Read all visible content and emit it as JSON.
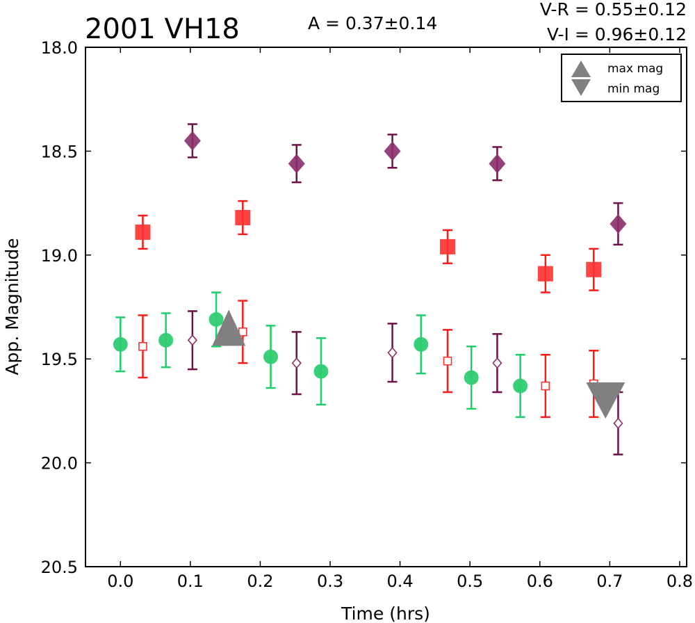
{
  "chart_data": {
    "type": "scatter",
    "title": "2001 VH18",
    "annotations": {
      "amplitude": "A  = 0.37±0.14",
      "v_r": "V-R = 0.55±0.12",
      "v_i": "V-I  = 0.96±0.12"
    },
    "xlabel": "Time (hrs)",
    "ylabel": "App. Magnitude",
    "xlim": [
      -0.05,
      0.81
    ],
    "ylim": [
      20.5,
      18.0
    ],
    "y_inverted": true,
    "xticks": [
      "0.0",
      "0.1",
      "0.2",
      "0.3",
      "0.4",
      "0.5",
      "0.6",
      "0.7",
      "0.8"
    ],
    "yticks": [
      "18.0",
      "18.5",
      "19.0",
      "19.5",
      "20.0",
      "20.5"
    ],
    "grid": false,
    "legend_position": "top-right",
    "legend": [
      {
        "label": "max mag",
        "marker": "triangle-up",
        "color": "#808080"
      },
      {
        "label": "min mag",
        "marker": "triangle-down",
        "color": "#808080"
      }
    ],
    "series": [
      {
        "marker": "circle",
        "color": "#2ecc71",
        "error_color": "#1ccf6a",
        "filled": true,
        "points": [
          {
            "x": 0.0,
            "y": 19.43,
            "err": 0.13
          },
          {
            "x": 0.065,
            "y": 19.41,
            "err": 0.13
          },
          {
            "x": 0.137,
            "y": 19.31,
            "err": 0.13
          },
          {
            "x": 0.215,
            "y": 19.49,
            "err": 0.15
          },
          {
            "x": 0.287,
            "y": 19.56,
            "err": 0.16
          },
          {
            "x": 0.43,
            "y": 19.43,
            "err": 0.14
          },
          {
            "x": 0.502,
            "y": 19.59,
            "err": 0.15
          },
          {
            "x": 0.572,
            "y": 19.63,
            "err": 0.15
          }
        ]
      },
      {
        "marker": "square",
        "color": "#ff3030",
        "error_color": "#ff1a1a",
        "filled": true,
        "points": [
          {
            "x": 0.032,
            "y": 18.89,
            "err": 0.08
          },
          {
            "x": 0.175,
            "y": 18.82,
            "err": 0.08
          },
          {
            "x": 0.468,
            "y": 18.96,
            "err": 0.08
          },
          {
            "x": 0.608,
            "y": 19.09,
            "err": 0.09
          },
          {
            "x": 0.677,
            "y": 19.07,
            "err": 0.1
          }
        ]
      },
      {
        "marker": "square",
        "color": "#ff3030",
        "error_color": "#ff1a1a",
        "filled": false,
        "points": [
          {
            "x": 0.032,
            "y": 19.44,
            "err": 0.15
          },
          {
            "x": 0.175,
            "y": 19.37,
            "err": 0.15
          },
          {
            "x": 0.468,
            "y": 19.51,
            "err": 0.15
          },
          {
            "x": 0.608,
            "y": 19.63,
            "err": 0.15
          },
          {
            "x": 0.677,
            "y": 19.62,
            "err": 0.16
          }
        ]
      },
      {
        "marker": "diamond",
        "color": "#8b2e6b",
        "error_color": "#6d0f4a",
        "filled": true,
        "points": [
          {
            "x": 0.103,
            "y": 18.45,
            "err": 0.08
          },
          {
            "x": 0.252,
            "y": 18.56,
            "err": 0.09
          },
          {
            "x": 0.389,
            "y": 18.5,
            "err": 0.08
          },
          {
            "x": 0.539,
            "y": 18.56,
            "err": 0.08
          },
          {
            "x": 0.712,
            "y": 18.85,
            "err": 0.1
          }
        ]
      },
      {
        "marker": "diamond",
        "color": "#8b2e6b",
        "error_color": "#6d0f4a",
        "filled": false,
        "points": [
          {
            "x": 0.103,
            "y": 19.41,
            "err": 0.14
          },
          {
            "x": 0.252,
            "y": 19.52,
            "err": 0.15
          },
          {
            "x": 0.389,
            "y": 19.47,
            "err": 0.14
          },
          {
            "x": 0.539,
            "y": 19.52,
            "err": 0.14
          },
          {
            "x": 0.712,
            "y": 19.81,
            "err": 0.15
          }
        ]
      }
    ],
    "extrema": [
      {
        "kind": "max",
        "marker": "triangle-up",
        "x": 0.155,
        "y": 19.35,
        "color": "#808080"
      },
      {
        "kind": "min",
        "marker": "triangle-down",
        "x": 0.694,
        "y": 19.7,
        "color": "#808080"
      }
    ]
  }
}
